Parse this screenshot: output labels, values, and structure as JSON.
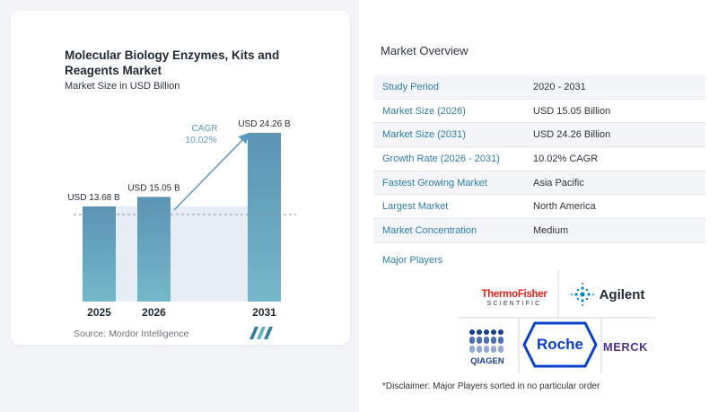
{
  "chart_data": {
    "type": "bar",
    "title": "Molecular Biology Enzymes, Kits and Reagents Market",
    "subtitle": "Market Size in USD Billion",
    "categories": [
      "2025",
      "2026",
      "2031"
    ],
    "values": [
      13.68,
      15.05,
      24.26
    ],
    "value_labels": [
      "USD 13.68 B",
      "USD 15.05 B",
      "USD 24.26 B"
    ],
    "cagr_label": "CAGR",
    "cagr_value": "10.02%",
    "colors": {
      "bar_top": "#5b93b5",
      "bar_bottom": "#74b8c9",
      "band": "#e6edf5",
      "arrow": "#5a9ac0"
    }
  },
  "source": "Source:  Mordor Intelligence",
  "overview": {
    "title": "Market Overview",
    "rows": [
      {
        "key": "Study Period",
        "value": "2020 - 2031"
      },
      {
        "key": "Market Size (2026)",
        "value": "USD 15.05 Billion"
      },
      {
        "key": "Market Size (2031)",
        "value": "USD 24.26 Billion"
      },
      {
        "key": "Growth Rate (2026 - 2031)",
        "value": "10.02% CAGR"
      },
      {
        "key": "Fastest Growing Market",
        "value": "Asia Pacific"
      },
      {
        "key": "Largest Market",
        "value": "North America"
      },
      {
        "key": "Market Concentration",
        "value": "Medium"
      }
    ]
  },
  "players": {
    "title": "Major Players",
    "thermo": {
      "line1": "ThermoFisher",
      "line2": "SCIENTIFIC"
    },
    "agilent": "Agilent",
    "qiagen": "QIAGEN",
    "roche": "Roche",
    "merck": "MERCK"
  },
  "disclaimer": "*Disclaimer: Major Players sorted in no particular order"
}
